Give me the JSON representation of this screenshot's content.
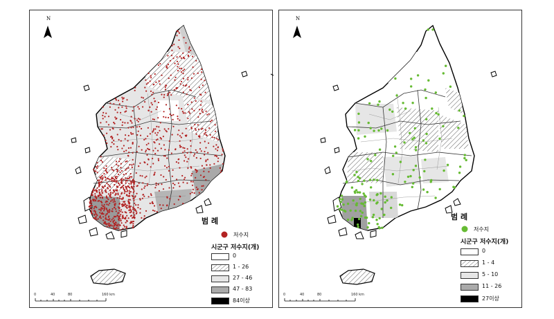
{
  "maps": [
    {
      "north_label": "N",
      "legend_title": "범 례",
      "point_label": "저수지",
      "point_color": "#b22222",
      "classes_title": "시군구 저수지(개)",
      "classes": [
        {
          "label": "0",
          "fill": "#ffffff",
          "pattern": false
        },
        {
          "label": "1 - 26",
          "fill": "#ffffff",
          "pattern": true
        },
        {
          "label": "27 - 46",
          "fill": "#e6e6e6",
          "pattern": false
        },
        {
          "label": "47 - 83",
          "fill": "#aaaaaa",
          "pattern": false
        },
        {
          "label": "84이상",
          "fill": "#000000",
          "pattern": false
        }
      ],
      "scale_labels": [
        "0",
        "40",
        "80",
        "160 km"
      ]
    },
    {
      "north_label": "N",
      "legend_title": "범 례",
      "point_label": "저수지",
      "point_color": "#66bb33",
      "classes_title": "시군구 저수지(개)",
      "classes": [
        {
          "label": "0",
          "fill": "#ffffff",
          "pattern": false
        },
        {
          "label": "1 - 4",
          "fill": "#ffffff",
          "pattern": true
        },
        {
          "label": "5 - 10",
          "fill": "#e6e6e6",
          "pattern": false
        },
        {
          "label": "11 - 26",
          "fill": "#aaaaaa",
          "pattern": false
        },
        {
          "label": "27이상",
          "fill": "#000000",
          "pattern": false
        }
      ],
      "scale_labels": [
        "0",
        "40",
        "80",
        "160 km"
      ]
    }
  ]
}
